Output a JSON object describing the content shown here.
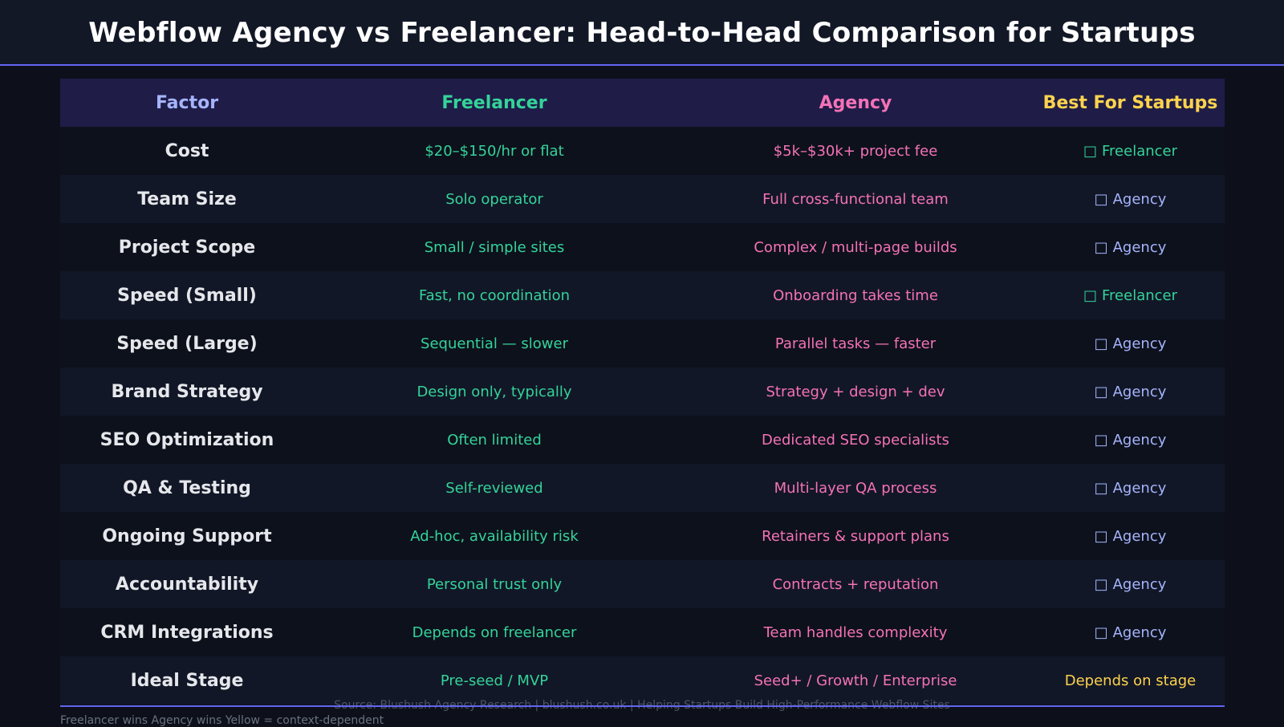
{
  "title": "Webflow Agency vs Freelancer: Head-to-Head Comparison for Startups",
  "colors": {
    "accent": "#6366f1",
    "freelancer": "#34d399",
    "agency": "#f472b6",
    "agency_winner": "#a5b4fc",
    "context": "#fcd34d"
  },
  "chart_data": {
    "type": "table",
    "title": "Webflow Agency vs Freelancer: Head-to-Head Comparison for Startups",
    "columns": [
      "Factor",
      "Freelancer",
      "Agency",
      "Best For Startups"
    ],
    "rows": [
      {
        "factor": "Cost",
        "freelancer": "$20–$150/hr or flat",
        "agency": "$5k–$30k+ project fee",
        "best": "Freelancer",
        "winner": "freelancer"
      },
      {
        "factor": "Team Size",
        "freelancer": "Solo operator",
        "agency": "Full cross-functional team",
        "best": "Agency",
        "winner": "agency"
      },
      {
        "factor": "Project Scope",
        "freelancer": "Small / simple sites",
        "agency": "Complex / multi-page builds",
        "best": "Agency",
        "winner": "agency"
      },
      {
        "factor": "Speed (Small)",
        "freelancer": "Fast, no coordination",
        "agency": "Onboarding takes time",
        "best": "Freelancer",
        "winner": "freelancer"
      },
      {
        "factor": "Speed (Large)",
        "freelancer": "Sequential — slower",
        "agency": "Parallel tasks — faster",
        "best": "Agency",
        "winner": "agency"
      },
      {
        "factor": "Brand Strategy",
        "freelancer": "Design only, typically",
        "agency": "Strategy + design + dev",
        "best": "Agency",
        "winner": "agency"
      },
      {
        "factor": "SEO Optimization",
        "freelancer": "Often limited",
        "agency": "Dedicated SEO specialists",
        "best": "Agency",
        "winner": "agency"
      },
      {
        "factor": "QA & Testing",
        "freelancer": "Self-reviewed",
        "agency": "Multi-layer QA process",
        "best": "Agency",
        "winner": "agency"
      },
      {
        "factor": "Ongoing Support",
        "freelancer": "Ad-hoc, availability risk",
        "agency": "Retainers & support plans",
        "best": "Agency",
        "winner": "agency"
      },
      {
        "factor": "Accountability",
        "freelancer": "Personal trust only",
        "agency": "Contracts + reputation",
        "best": "Agency",
        "winner": "agency"
      },
      {
        "factor": "CRM Integrations",
        "freelancer": "Depends on freelancer",
        "agency": "Team handles complexity",
        "best": "Agency",
        "winner": "agency"
      },
      {
        "factor": "Ideal Stage",
        "freelancer": "Pre-seed / MVP",
        "agency": "Seed+ / Growth / Enterprise",
        "best": "Depends on stage",
        "winner": "depends"
      }
    ]
  },
  "footer": {
    "source": "Source: Blushush Agency Research  |  blushush.co.uk  |  Helping Startups Build High-Performance Webflow Sites",
    "legend": "Freelancer wins    Agency wins    Yellow = context-dependent"
  },
  "icons": {
    "winner_glyph": "check-icon"
  }
}
